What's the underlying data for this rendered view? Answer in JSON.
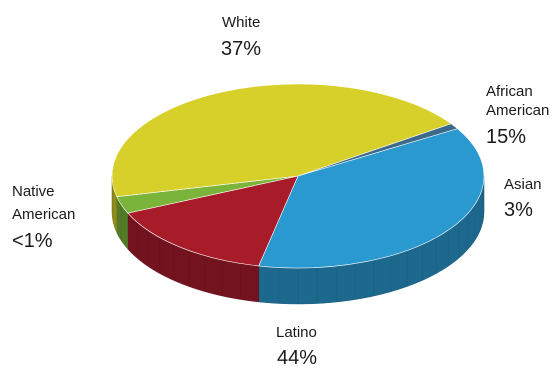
{
  "chart_data": {
    "type": "pie",
    "style": "3d",
    "slices": [
      {
        "label": "White",
        "value": 37,
        "value_label": "37%",
        "color": "#2a99cf"
      },
      {
        "label": "African American",
        "value": 15,
        "value_label": "15%",
        "color": "#a81c2a"
      },
      {
        "label": "Asian",
        "value": 3,
        "value_label": "3%",
        "color": "#7ab43a"
      },
      {
        "label": "Latino",
        "value": 44,
        "value_label": "44%",
        "color": "#d8d02a"
      },
      {
        "label": "Native American",
        "value": 1,
        "value_label": "<1%",
        "color": "#3d6a8a"
      }
    ]
  }
}
